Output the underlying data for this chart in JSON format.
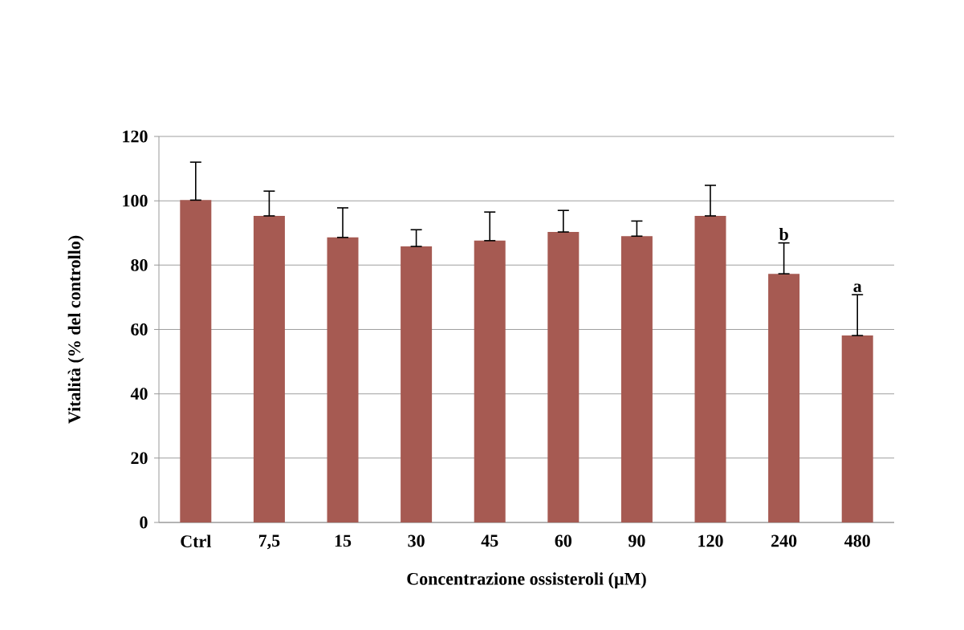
{
  "chart_data": {
    "type": "bar",
    "xlabel": "Concentrazione ossisteroli (µM)",
    "ylabel": "Vitalità (% del controllo)",
    "categories": [
      "Ctrl",
      "7,5",
      "15",
      "30",
      "45",
      "60",
      "90",
      "120",
      "240",
      "480"
    ],
    "values": [
      100.2,
      95.3,
      88.6,
      85.8,
      87.6,
      90.3,
      89,
      95.3,
      77.3,
      58.1
    ],
    "errors": [
      [
        100.2,
        112
      ],
      [
        95.3,
        103
      ],
      [
        88.6,
        97.8
      ],
      [
        85.8,
        91
      ],
      [
        87.6,
        96.5
      ],
      [
        90.3,
        97
      ],
      [
        89,
        93.7
      ],
      [
        95.3,
        104.8
      ],
      [
        77.3,
        86.9
      ],
      [
        58.1,
        70.8
      ]
    ],
    "color": "#a65a52",
    "ylim": [
      0,
      120
    ],
    "yticks": [
      0,
      20,
      40,
      60,
      80,
      100,
      120
    ],
    "grid": "y",
    "annotations": [
      {
        "text": "b",
        "x": "240",
        "y": 86.9
      },
      {
        "text": "a",
        "x": "480",
        "y": 70.8
      }
    ]
  }
}
